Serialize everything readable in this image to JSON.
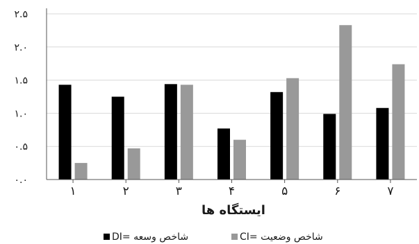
{
  "chart_data": {
    "type": "bar",
    "xlabel": "ایستگاه ها",
    "ylabel": "",
    "categories": [
      "۱",
      "۲",
      "۳",
      "۴",
      "۵",
      "۶",
      "۷"
    ],
    "yticks": [
      "۰.۰",
      "۰.۵",
      "۱.۰",
      "۱.۵",
      "۲.۰",
      "۲.۵"
    ],
    "ylim": [
      0,
      2.5
    ],
    "grid": true,
    "legend": "bottom",
    "series": [
      {
        "name": "DI= شاخص وسعه",
        "color": "#000000",
        "values": [
          1.43,
          1.25,
          1.44,
          0.77,
          1.32,
          0.99,
          1.08
        ]
      },
      {
        "name": "CI= شاخص وضعیت",
        "color": "#999999",
        "values": [
          0.25,
          0.47,
          1.43,
          0.6,
          1.53,
          2.33,
          1.74
        ]
      }
    ]
  }
}
